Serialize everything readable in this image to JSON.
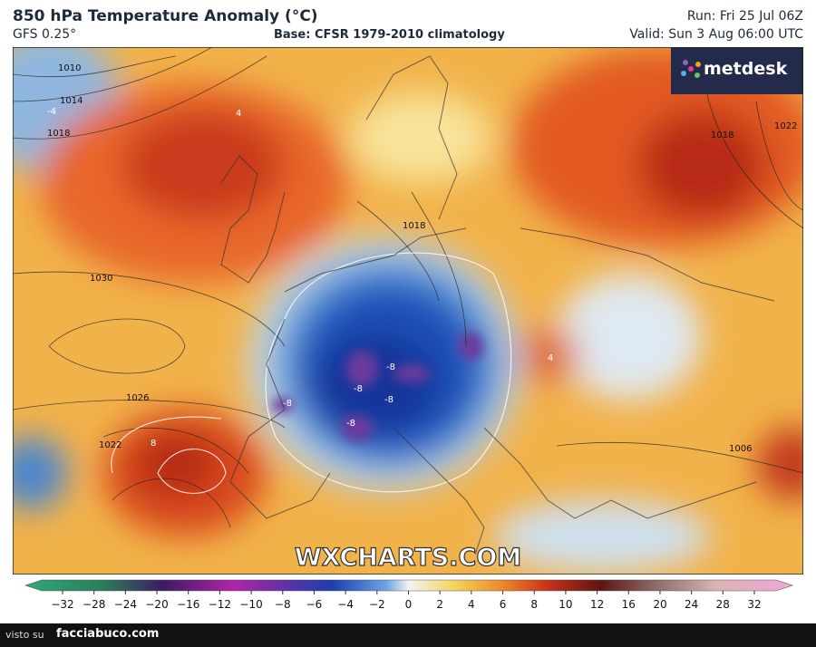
{
  "header": {
    "title": "850 hPa Temperature Anomaly (°C)",
    "model": "GFS 0.25°",
    "base": "Base: CFSR 1979-2010 climatology",
    "run": "Run: Fri 25 Jul 06Z",
    "valid": "Valid: Sun 3 Aug 06:00 UTC"
  },
  "logo": "metdesk",
  "watermark": "WXCHARTS.COM",
  "map_labels": {
    "isobars": [
      "1010",
      "1014",
      "1018",
      "1030",
      "1026",
      "1022",
      "1018",
      "1006",
      "1018",
      "1022"
    ],
    "anomalies": [
      "-4",
      "-8",
      "-8",
      "-8",
      "-8",
      "-8",
      "8",
      "4",
      "4"
    ]
  },
  "colorbar": {
    "ticks": [
      {
        "value": -32,
        "label": "−32"
      },
      {
        "value": -28,
        "label": "−28"
      },
      {
        "value": -24,
        "label": "−24"
      },
      {
        "value": -20,
        "label": "−20"
      },
      {
        "value": -16,
        "label": "−16"
      },
      {
        "value": -12,
        "label": "−12"
      },
      {
        "value": -10,
        "label": "−10"
      },
      {
        "value": -8,
        "label": "−8"
      },
      {
        "value": -6,
        "label": "−6"
      },
      {
        "value": -4,
        "label": "−4"
      },
      {
        "value": -2,
        "label": "−2"
      },
      0,
      2,
      4,
      6,
      8,
      10,
      12,
      16,
      20,
      24,
      28,
      32
    ]
  },
  "footer": {
    "prefix": "visto su",
    "site": "facciabuco.com"
  }
}
